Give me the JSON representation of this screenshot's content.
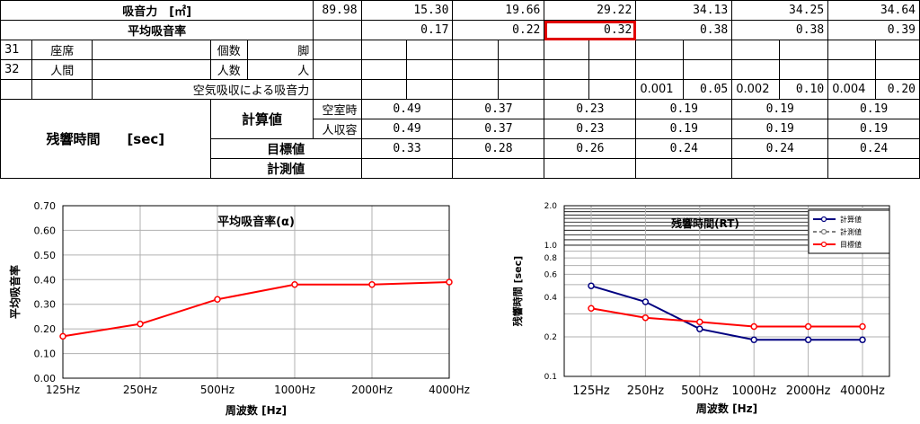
{
  "table": {
    "row1": {
      "label": "吸音力　[㎡]",
      "values": [
        "89.98",
        "15.30",
        "19.66",
        "29.22",
        "34.13",
        "34.25",
        "34.64"
      ]
    },
    "row2": {
      "label": "平均吸音率",
      "values": [
        "0.17",
        "0.22",
        "0.32",
        "0.38",
        "0.38",
        "0.39"
      ]
    },
    "row3": {
      "no": "31",
      "name": "座席",
      "unit_label": "個数",
      "unit": "脚"
    },
    "row4": {
      "no": "32",
      "name": "人間",
      "unit_label": "人数",
      "unit": "人"
    },
    "row5": {
      "label": "空気吸収による吸音力",
      "coef": [
        "0.001",
        "0.002",
        "0.004"
      ],
      "values": [
        "0.05",
        "0.10",
        "0.20"
      ]
    },
    "rt": {
      "label": "残響時間　　[sec]",
      "calc_label": "計算値",
      "empty_label": "空室時",
      "occupied_label": "人収容",
      "target_label": "目標値",
      "measured_label": "計測値",
      "empty": [
        "0.49",
        "0.37",
        "0.23",
        "0.19",
        "0.19",
        "0.19"
      ],
      "occupied": [
        "0.49",
        "0.37",
        "0.23",
        "0.19",
        "0.19",
        "0.19"
      ],
      "target": [
        "0.33",
        "0.28",
        "0.26",
        "0.24",
        "0.24",
        "0.24"
      ]
    }
  },
  "chart_data": [
    {
      "type": "line",
      "title": "平均吸音率(α)",
      "xlabel": "周波数 [Hz]",
      "ylabel": "平均吸音率",
      "categories": [
        "125Hz",
        "250Hz",
        "500Hz",
        "1000Hz",
        "2000Hz",
        "4000Hz"
      ],
      "ylim": [
        0,
        0.7
      ],
      "yticks": [
        "0.00",
        "0.10",
        "0.20",
        "0.30",
        "0.40",
        "0.50",
        "0.60",
        "0.70"
      ],
      "series": [
        {
          "name": "平均吸音率",
          "values": [
            0.17,
            0.22,
            0.32,
            0.38,
            0.38,
            0.39
          ],
          "color": "#ff0000"
        }
      ]
    },
    {
      "type": "line",
      "title": "残響時間(RT)",
      "xlabel": "周波数 [Hz]",
      "ylabel": "残響時間 [sec]",
      "categories": [
        "125Hz",
        "250Hz",
        "500Hz",
        "1000Hz",
        "2000Hz",
        "4000Hz"
      ],
      "yscale": "log",
      "ylim": [
        0.1,
        2.0
      ],
      "yticks": [
        "0.1",
        "0.2",
        "0.4",
        "0.6",
        "0.8",
        "1.0",
        "2.0"
      ],
      "legend": [
        "計算値",
        "計測値",
        "目標値"
      ],
      "series": [
        {
          "name": "計算値",
          "values": [
            0.49,
            0.37,
            0.23,
            0.19,
            0.19,
            0.19
          ],
          "color": "#000080"
        },
        {
          "name": "目標値",
          "values": [
            0.33,
            0.28,
            0.26,
            0.24,
            0.24,
            0.24
          ],
          "color": "#ff0000"
        }
      ]
    }
  ]
}
